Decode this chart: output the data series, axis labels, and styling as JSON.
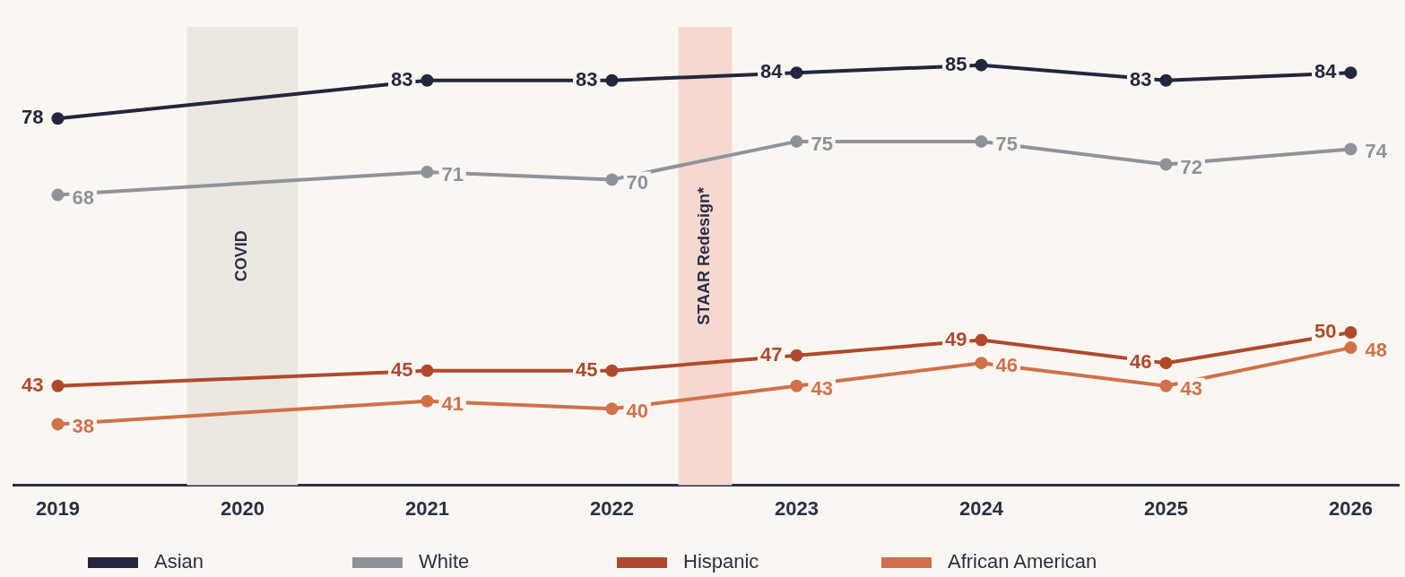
{
  "chart_data": {
    "type": "line",
    "x": [
      2019,
      2021,
      2022,
      2023,
      2024,
      2025,
      2026
    ],
    "series": [
      {
        "name": "Asian",
        "color": "#22263f",
        "values": [
          78,
          83,
          83,
          84,
          85,
          83,
          84
        ]
      },
      {
        "name": "White",
        "color": "#8e939b",
        "values": [
          68,
          71,
          70,
          75,
          75,
          72,
          74
        ]
      },
      {
        "name": "Hispanic",
        "color": "#b0492c",
        "values": [
          43,
          45,
          45,
          47,
          49,
          46,
          50
        ]
      },
      {
        "name": "African American",
        "color": "#d0714a",
        "values": [
          38,
          41,
          40,
          43,
          46,
          43,
          48
        ]
      }
    ],
    "xlim": [
      2018.76,
      2026.26
    ],
    "xticks": [
      2019,
      2020,
      2021,
      2022,
      2023,
      2024,
      2025,
      2026
    ],
    "tick_labels": "x",
    "bands": [
      {
        "axis": "x",
        "from": 2019.7,
        "to": 2020.3,
        "label": "COVID",
        "color": "#ece8e1"
      },
      {
        "axis": "x",
        "from": 2022.36,
        "to": 2022.65,
        "label": "STAAR Redesign*",
        "color": "#f5d8d0"
      }
    ],
    "data_labels": true,
    "grid": false,
    "legend": "bottom",
    "marker": "circle",
    "line_style": "solid"
  }
}
